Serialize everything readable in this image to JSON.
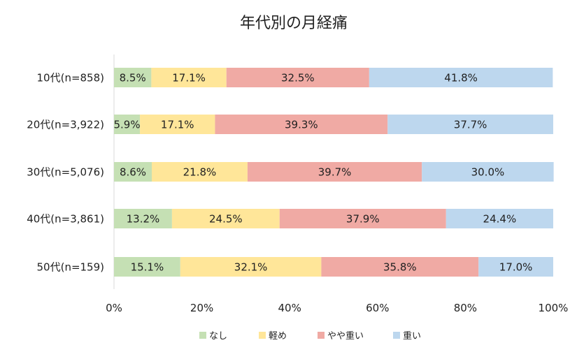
{
  "chart_data": {
    "type": "bar",
    "orientation": "horizontal",
    "stacked": "percent",
    "title": "年代別の月経痛",
    "xlabel": "",
    "ylabel": "",
    "xlim": [
      0,
      100
    ],
    "x_ticks": [
      "0%",
      "20%",
      "40%",
      "60%",
      "80%",
      "100%"
    ],
    "categories": [
      "10代(n=858)",
      "20代(n=3,922)",
      "30代(n=5,076)",
      "40代(n=3,861)",
      "50代(n=159)"
    ],
    "series": [
      {
        "name": "なし",
        "color": "#c5e0b4",
        "values": [
          8.5,
          5.9,
          8.6,
          13.2,
          15.1
        ],
        "labels": [
          "8.5%",
          "5.9%",
          "8.6%",
          "13.2%",
          "15.1%"
        ]
      },
      {
        "name": "軽め",
        "color": "#ffe699",
        "values": [
          17.1,
          17.1,
          21.8,
          24.5,
          32.1
        ],
        "labels": [
          "17.1%",
          "17.1%",
          "21.8%",
          "24.5%",
          "32.1%"
        ]
      },
      {
        "name": "やや重い",
        "color": "#f0aaa4",
        "values": [
          32.5,
          39.3,
          39.7,
          37.9,
          35.8
        ],
        "labels": [
          "32.5%",
          "39.3%",
          "39.7%",
          "37.9%",
          "35.8%"
        ]
      },
      {
        "name": "重い",
        "color": "#bdd7ee",
        "values": [
          41.8,
          37.7,
          30.0,
          24.4,
          17.0
        ],
        "labels": [
          "41.8%",
          "37.7%",
          "30.0%",
          "24.4%",
          "17.0%"
        ]
      }
    ],
    "grid": false,
    "legend_position": "bottom"
  }
}
